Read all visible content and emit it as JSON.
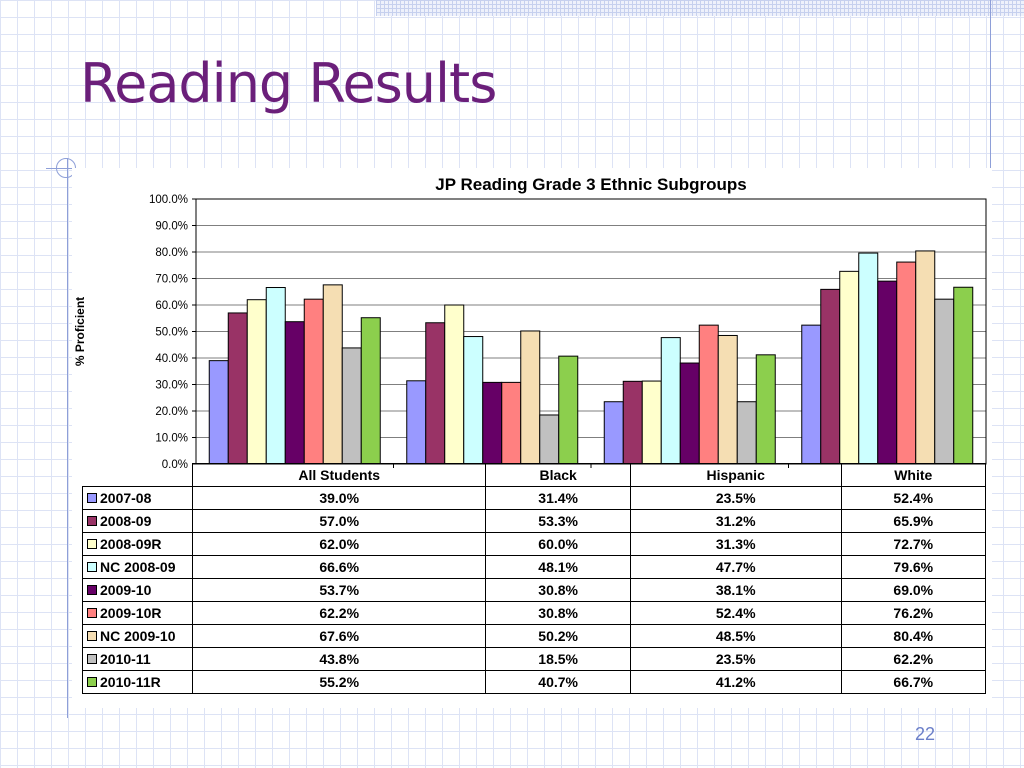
{
  "slide": {
    "title": "Reading Results",
    "page_number": "22"
  },
  "chart_data": {
    "type": "bar",
    "title": "JP Reading Grade 3 Ethnic Subgroups",
    "xlabel": "",
    "ylabel": "% Proficient",
    "ylim": [
      0,
      100
    ],
    "y_ticks": [
      "0.0%",
      "10.0%",
      "20.0%",
      "30.0%",
      "40.0%",
      "50.0%",
      "60.0%",
      "70.0%",
      "80.0%",
      "90.0%",
      "100.0%"
    ],
    "grid": true,
    "legend": "data-table-below",
    "categories": [
      "All Students",
      "Black",
      "Hispanic",
      "White"
    ],
    "series": [
      {
        "name": "2007-08",
        "color": "#9999ff",
        "values": [
          39.0,
          31.4,
          23.5,
          52.4
        ],
        "labels": [
          "39.0%",
          "31.4%",
          "23.5%",
          "52.4%"
        ]
      },
      {
        "name": "2008-09",
        "color": "#993366",
        "values": [
          57.0,
          53.3,
          31.2,
          65.9
        ],
        "labels": [
          "57.0%",
          "53.3%",
          "31.2%",
          "65.9%"
        ]
      },
      {
        "name": "2008-09R",
        "color": "#ffffcc",
        "values": [
          62.0,
          60.0,
          31.3,
          72.7
        ],
        "labels": [
          "62.0%",
          "60.0%",
          "31.3%",
          "72.7%"
        ]
      },
      {
        "name": "NC 2008-09",
        "color": "#ccffff",
        "values": [
          66.6,
          48.1,
          47.7,
          79.6
        ],
        "labels": [
          "66.6%",
          "48.1%",
          "47.7%",
          "79.6%"
        ]
      },
      {
        "name": "2009-10",
        "color": "#660066",
        "values": [
          53.7,
          30.8,
          38.1,
          69.0
        ],
        "labels": [
          "53.7%",
          "30.8%",
          "38.1%",
          "69.0%"
        ]
      },
      {
        "name": "2009-10R",
        "color": "#ff8080",
        "values": [
          62.2,
          30.8,
          52.4,
          76.2
        ],
        "labels": [
          "62.2%",
          "30.8%",
          "52.4%",
          "76.2%"
        ]
      },
      {
        "name": "NC 2009-10",
        "color": "#f5deb3",
        "values": [
          67.6,
          50.2,
          48.5,
          80.4
        ],
        "labels": [
          "67.6%",
          "50.2%",
          "48.5%",
          "80.4%"
        ]
      },
      {
        "name": "2010-11",
        "color": "#c0c0c0",
        "values": [
          43.8,
          18.5,
          23.5,
          62.2
        ],
        "labels": [
          "43.8%",
          "18.5%",
          "23.5%",
          "62.2%"
        ]
      },
      {
        "name": "2010-11R",
        "color": "#8ccf4d",
        "values": [
          55.2,
          40.7,
          41.2,
          66.7
        ],
        "labels": [
          "55.2%",
          "40.7%",
          "41.2%",
          "66.7%"
        ]
      }
    ]
  }
}
